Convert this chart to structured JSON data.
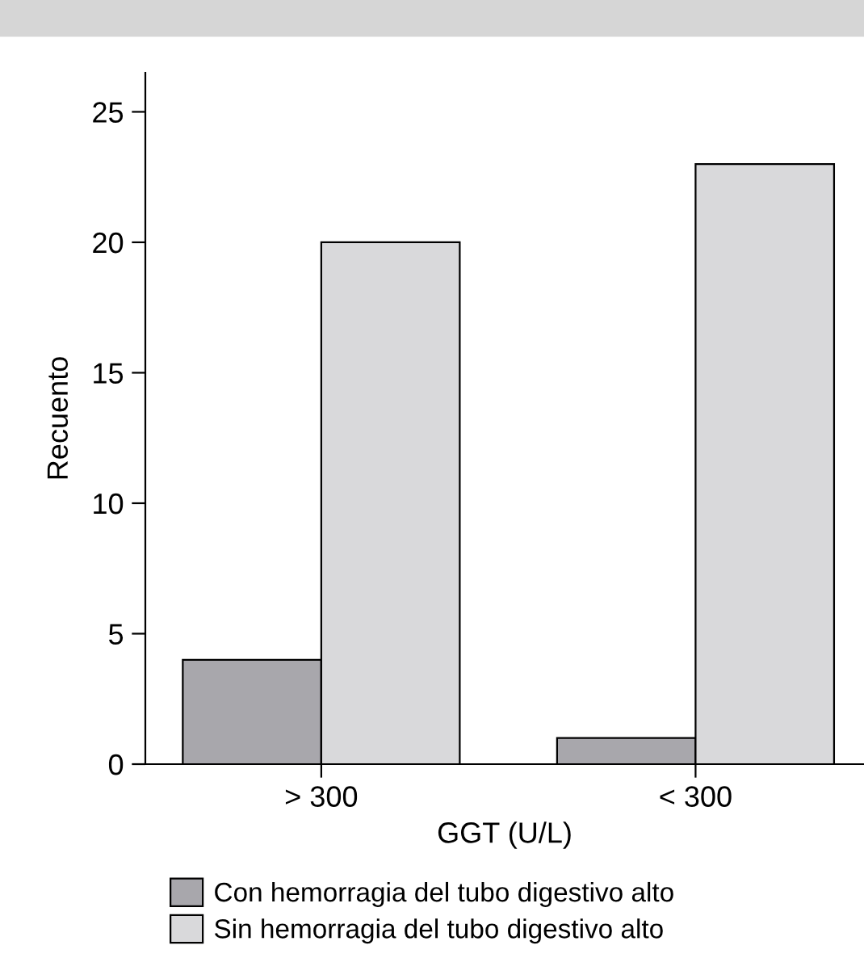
{
  "chart_data": {
    "type": "bar",
    "xlabel": "GGT (U/L)",
    "ylabel": "Recuento",
    "categories": [
      "> 300",
      "< 300"
    ],
    "series": [
      {
        "name": "Con hemorragia del tubo digestivo alto",
        "color": "#a8a7ac",
        "values": [
          4,
          1
        ]
      },
      {
        "name": "Sin hemorragia del tubo digestivo alto",
        "color": "#d9d9db",
        "values": [
          20,
          23
        ]
      }
    ],
    "ylim": [
      0,
      26.5
    ],
    "yticks": [
      0,
      5,
      10,
      15,
      20,
      25
    ],
    "grid": false,
    "legend": "bottom"
  }
}
